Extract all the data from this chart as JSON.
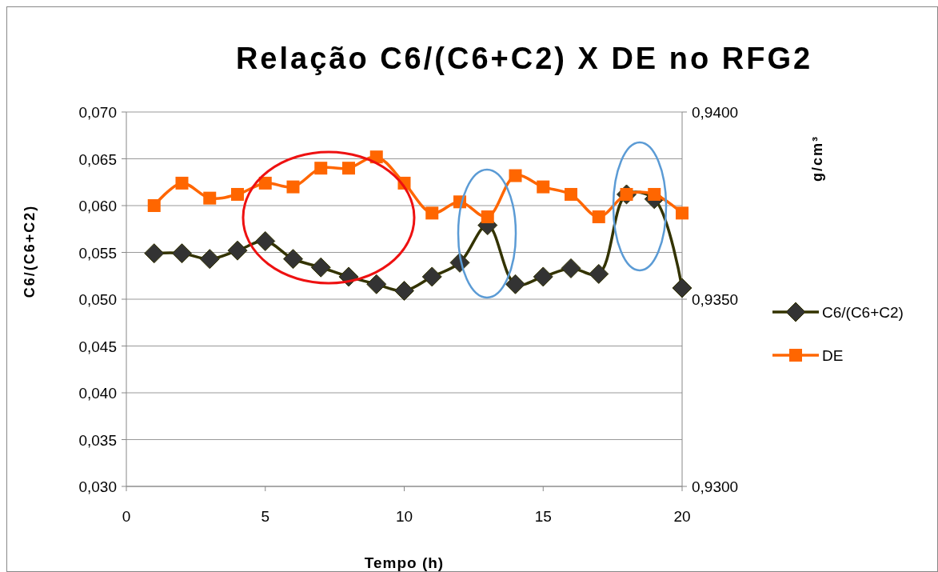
{
  "chart_data": {
    "type": "line",
    "title": "Relação C6/(C6+C2) X DE no RFG2",
    "xlabel": "Tempo (h)",
    "ylabel": "C6/(C6+C2)",
    "y2label": "g/cm³",
    "x": [
      1,
      2,
      3,
      4,
      5,
      6,
      7,
      8,
      9,
      10,
      11,
      12,
      13,
      14,
      15,
      16,
      17,
      18,
      19,
      20
    ],
    "series": [
      {
        "name": "C6/(C6+C2)",
        "color": "#333300",
        "marker": "diamond",
        "values": [
          0.0549,
          0.0549,
          0.0543,
          0.0552,
          0.0562,
          0.0543,
          0.0534,
          0.0524,
          0.0516,
          0.0509,
          0.0524,
          0.0539,
          0.0579,
          0.0516,
          0.0524,
          0.0533,
          0.0527,
          0.0612,
          0.0607,
          0.0512
        ]
      },
      {
        "name": "DE",
        "color": "#ff6600",
        "marker": "square",
        "axis": "y2",
        "values": [
          0.9375,
          0.9381,
          0.9377,
          0.9378,
          0.9381,
          0.938,
          0.9385,
          0.9385,
          0.9388,
          0.9381,
          0.9373,
          0.9376,
          0.9372,
          0.9383,
          0.938,
          0.9378,
          0.9372,
          0.9378,
          0.9378,
          0.9373
        ]
      }
    ],
    "xlim": [
      0,
      20
    ],
    "xticks": [
      0,
      5,
      10,
      15,
      20
    ],
    "ylim": [
      0.03,
      0.07
    ],
    "yticks": [
      {
        "value": 0.03,
        "label": "0,030"
      },
      {
        "value": 0.035,
        "label": "0,035"
      },
      {
        "value": 0.04,
        "label": "0,040"
      },
      {
        "value": 0.045,
        "label": "0,045"
      },
      {
        "value": 0.05,
        "label": "0,050"
      },
      {
        "value": 0.055,
        "label": "0,055"
      },
      {
        "value": 0.06,
        "label": "0,060"
      },
      {
        "value": 0.065,
        "label": "0,065"
      },
      {
        "value": 0.07,
        "label": "0,070"
      }
    ],
    "y2lim": [
      0.93,
      0.94
    ],
    "y2ticks": [
      {
        "value": 0.93,
        "label": "0,9300"
      },
      {
        "value": 0.935,
        "label": "0,9350"
      },
      {
        "value": 0.94,
        "label": "0,9400"
      }
    ],
    "grid": "y",
    "legend": "right"
  }
}
